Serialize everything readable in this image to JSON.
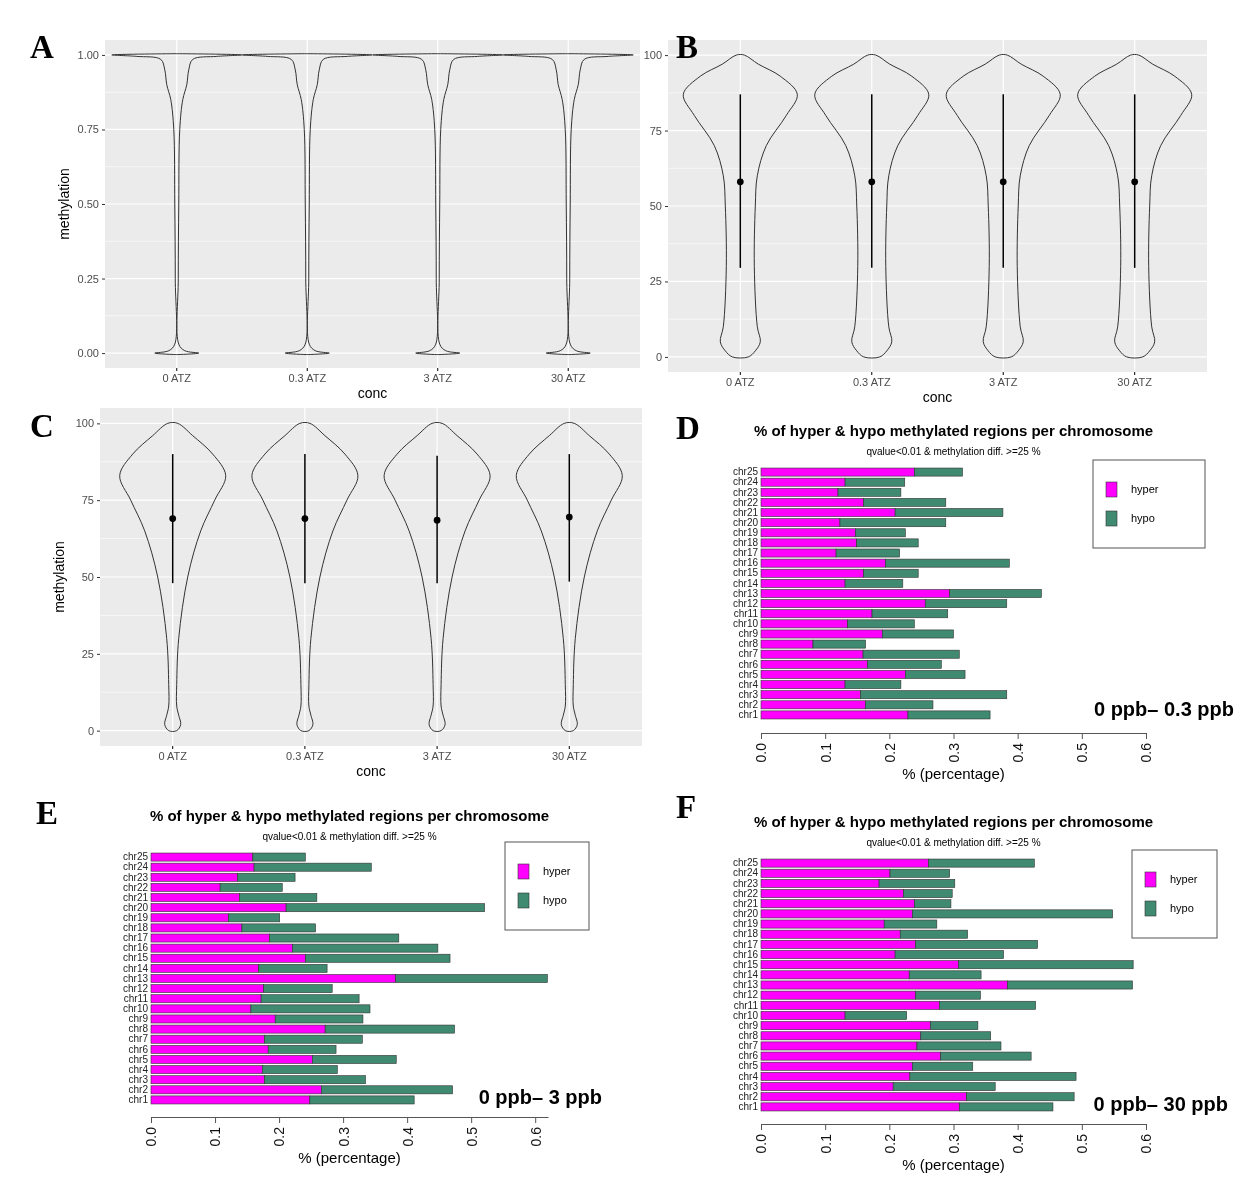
{
  "chart_data": [
    {
      "type": "scatter",
      "annotations": [
        "A"
      ],
      "xlabel": "conc",
      "ylabel": "methylation",
      "categories": [
        "0 ATZ",
        "0.3 ATZ",
        "3 ATZ",
        "30 ATZ"
      ],
      "ylim": [
        -0.05,
        1.05
      ],
      "yticks": [
        {
          "value": 0,
          "label": "0.00"
        },
        {
          "value": 0.25,
          "label": "0.25"
        },
        {
          "value": 0.5,
          "label": "0.50"
        },
        {
          "value": 0.75,
          "label": "0.75"
        },
        {
          "value": 1,
          "label": "1.00"
        }
      ],
      "grid": true,
      "marker": "circle",
      "series": [
        {
          "values": [
            null,
            null,
            null,
            null
          ]
        }
      ]
    },
    {
      "type": "scatter",
      "annotations": [
        "B"
      ],
      "xlabel": "conc",
      "categories": [
        "0 ATZ",
        "0.3 ATZ",
        "3 ATZ",
        "30 ATZ"
      ],
      "ylim": [
        -5,
        105
      ],
      "yticks": [
        0,
        25,
        50,
        75,
        100
      ],
      "grid": true,
      "marker": "circle",
      "series": [
        {
          "color": "#000000",
          "values": [
            58,
            58,
            58,
            58
          ],
          "errors": [
            [
              29.5,
              87
            ],
            [
              29.5,
              87
            ],
            [
              29.5,
              87
            ],
            [
              29.5,
              87
            ]
          ]
        }
      ]
    },
    {
      "type": "scatter",
      "annotations": [
        "C"
      ],
      "xlabel": "conc",
      "ylabel": "methylation",
      "categories": [
        "0 ATZ",
        "0.3 ATZ",
        "3 ATZ",
        "30 ATZ"
      ],
      "ylim": [
        -5,
        105
      ],
      "yticks": [
        0,
        25,
        50,
        75,
        100
      ],
      "grid": true,
      "marker": "circle",
      "series": [
        {
          "color": "#000000",
          "values": [
            69,
            69,
            68.5,
            69.5
          ],
          "errors": [
            [
              48,
              90
            ],
            [
              48,
              90
            ],
            [
              48,
              89.5
            ],
            [
              48.5,
              90
            ]
          ]
        }
      ]
    },
    {
      "type": "bar",
      "orientation": "horizontal",
      "stacked": true,
      "annotations": [
        "D",
        "0 ppb– 0.3 ppb"
      ],
      "title": "% of hyper & hypo methylated regions per chromosome",
      "subtitle": "qvalue<0.01 & methylation diff. >=25 %",
      "xlabel": "% (percentage)",
      "categories": [
        "chr25",
        "chr24",
        "chr23",
        "chr22",
        "chr21",
        "chr20",
        "chr19",
        "chr18",
        "chr17",
        "chr16",
        "chr15",
        "chr14",
        "chr13",
        "chr12",
        "chr11",
        "chr10",
        "chr9",
        "chr8",
        "chr7",
        "chr6",
        "chr5",
        "chr4",
        "chr3",
        "chr2",
        "chr1"
      ],
      "xlim": [
        0,
        0.6
      ],
      "xticks": [
        {
          "value": 0,
          "label": "0.0"
        },
        {
          "value": 0.1,
          "label": "0.1"
        },
        {
          "value": 0.2,
          "label": "0.2"
        },
        {
          "value": 0.3,
          "label": "0.3"
        },
        {
          "value": 0.4,
          "label": "0.4"
        },
        {
          "value": 0.5,
          "label": "0.5"
        },
        {
          "value": 0.6,
          "label": "0.6"
        }
      ],
      "grid": false,
      "legend": "top right",
      "series": [
        {
          "name": "hyper",
          "color": "#ff00ff",
          "values": [
            0.239,
            0.131,
            0.12,
            0.16,
            0.209,
            0.123,
            0.147,
            0.149,
            0.117,
            0.194,
            0.16,
            0.131,
            0.294,
            0.256,
            0.173,
            0.135,
            0.189,
            0.081,
            0.159,
            0.166,
            0.225,
            0.131,
            0.155,
            0.163,
            0.229
          ]
        },
        {
          "name": "hypo",
          "color": "#3f8a70",
          "values": [
            0.075,
            0.093,
            0.098,
            0.128,
            0.168,
            0.165,
            0.078,
            0.096,
            0.099,
            0.193,
            0.085,
            0.09,
            0.143,
            0.127,
            0.118,
            0.104,
            0.111,
            0.082,
            0.15,
            0.115,
            0.093,
            0.087,
            0.228,
            0.105,
            0.128
          ]
        }
      ]
    },
    {
      "type": "bar",
      "orientation": "horizontal",
      "stacked": true,
      "annotations": [
        "E",
        "0 ppb– 3 ppb"
      ],
      "title": "% of hyper & hypo methylated regions per chromosome",
      "subtitle": "qvalue<0.01 & methylation diff. >=25 %",
      "xlabel": "% (percentage)",
      "categories": [
        "chr25",
        "chr24",
        "chr23",
        "chr22",
        "chr21",
        "chr20",
        "chr19",
        "chr18",
        "chr17",
        "chr16",
        "chr15",
        "chr14",
        "chr13",
        "chr12",
        "chr11",
        "chr10",
        "chr9",
        "chr8",
        "chr7",
        "chr6",
        "chr5",
        "chr4",
        "chr3",
        "chr2",
        "chr1"
      ],
      "xlim": [
        0,
        0.62
      ],
      "xticks": [
        {
          "value": 0,
          "label": "0.0"
        },
        {
          "value": 0.1,
          "label": "0.1"
        },
        {
          "value": 0.2,
          "label": "0.2"
        },
        {
          "value": 0.3,
          "label": "0.3"
        },
        {
          "value": 0.4,
          "label": "0.4"
        },
        {
          "value": 0.5,
          "label": "0.5"
        },
        {
          "value": 0.6,
          "label": "0.6"
        }
      ],
      "grid": false,
      "legend": "top right",
      "series": [
        {
          "name": "hyper",
          "color": "#ff00ff",
          "values": [
            0.159,
            0.161,
            0.135,
            0.108,
            0.138,
            0.211,
            0.121,
            0.142,
            0.185,
            0.221,
            0.241,
            0.168,
            0.382,
            0.176,
            0.172,
            0.156,
            0.194,
            0.272,
            0.177,
            0.183,
            0.252,
            0.174,
            0.177,
            0.266,
            0.248
          ]
        },
        {
          "name": "hypo",
          "color": "#3f8a70",
          "values": [
            0.082,
            0.183,
            0.09,
            0.097,
            0.121,
            0.31,
            0.08,
            0.115,
            0.202,
            0.227,
            0.226,
            0.107,
            0.237,
            0.107,
            0.153,
            0.186,
            0.137,
            0.202,
            0.153,
            0.106,
            0.131,
            0.117,
            0.158,
            0.205,
            0.163
          ]
        }
      ]
    },
    {
      "type": "bar",
      "orientation": "horizontal",
      "stacked": true,
      "annotations": [
        "F",
        "0 ppb– 30 ppb"
      ],
      "title": "% of hyper & hypo methylated regions per chromosome",
      "subtitle": "qvalue<0.01 & methylation diff. >=25 %",
      "xlabel": "% (percentage)",
      "categories": [
        "chr25",
        "chr24",
        "chr23",
        "chr22",
        "chr21",
        "chr20",
        "chr19",
        "chr18",
        "chr17",
        "chr16",
        "chr15",
        "chr14",
        "chr13",
        "chr12",
        "chr11",
        "chr10",
        "chr9",
        "chr8",
        "chr7",
        "chr6",
        "chr5",
        "chr4",
        "chr3",
        "chr2",
        "chr1"
      ],
      "xlim": [
        0,
        0.6
      ],
      "xticks": [
        {
          "value": 0,
          "label": "0.0"
        },
        {
          "value": 0.1,
          "label": "0.1"
        },
        {
          "value": 0.2,
          "label": "0.2"
        },
        {
          "value": 0.3,
          "label": "0.3"
        },
        {
          "value": 0.4,
          "label": "0.4"
        },
        {
          "value": 0.5,
          "label": "0.5"
        },
        {
          "value": 0.6,
          "label": "0.6"
        }
      ],
      "grid": false,
      "legend": "top right",
      "series": [
        {
          "name": "hyper",
          "color": "#ff00ff",
          "values": [
            0.261,
            0.201,
            0.184,
            0.222,
            0.239,
            0.236,
            0.192,
            0.217,
            0.241,
            0.209,
            0.308,
            0.231,
            0.384,
            0.241,
            0.278,
            0.131,
            0.264,
            0.249,
            0.243,
            0.28,
            0.236,
            0.232,
            0.206,
            0.32,
            0.309
          ]
        },
        {
          "name": "hypo",
          "color": "#3f8a70",
          "values": [
            0.165,
            0.093,
            0.118,
            0.076,
            0.057,
            0.312,
            0.082,
            0.105,
            0.19,
            0.169,
            0.272,
            0.112,
            0.195,
            0.101,
            0.15,
            0.096,
            0.074,
            0.109,
            0.131,
            0.141,
            0.094,
            0.259,
            0.159,
            0.168,
            0.146
          ]
        }
      ]
    }
  ]
}
